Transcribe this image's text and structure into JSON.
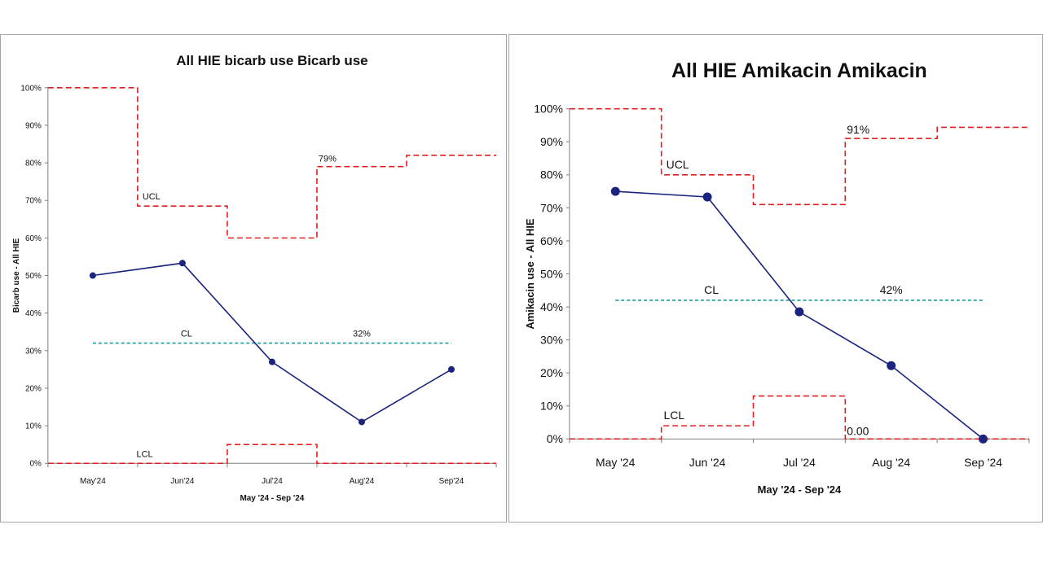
{
  "charts": [
    {
      "type": "line",
      "title": "All HIE bicarb use Bicarb use",
      "xlabel": "May '24 - Sep '24",
      "ylabel": "Bicarb use - All HIE",
      "categories": [
        "May'24",
        "Jun'24",
        "Jul'24",
        "Aug'24",
        "Sep'24"
      ],
      "yticks": [
        "0%",
        "10%",
        "20%",
        "30%",
        "40%",
        "50%",
        "60%",
        "70%",
        "80%",
        "90%",
        "100%"
      ],
      "ylim": [
        0,
        100
      ],
      "grid": false,
      "colors": {
        "series": "#1a237e",
        "limits": "#e02020",
        "center": "#1a9a9a"
      },
      "series": [
        {
          "values": [
            50,
            53.3,
            27,
            11,
            25
          ]
        }
      ],
      "ucl": [
        100,
        68.5,
        60,
        79,
        82
      ],
      "lcl": [
        0,
        0,
        5,
        0,
        0
      ],
      "cl": 32,
      "annotations": {
        "ucl": "UCL",
        "cl": "CL",
        "lcl": "LCL",
        "cl_value": "32%",
        "ucl_value": "79%",
        "lcl_value": ""
      }
    },
    {
      "type": "line",
      "title": "All HIE Amikacin Amikacin",
      "xlabel": "May '24 - Sep '24",
      "ylabel": "Amikacin  use - All HIE",
      "categories": [
        "May '24",
        "Jun '24",
        "Jul '24",
        "Aug '24",
        "Sep '24"
      ],
      "yticks": [
        "0%",
        "10%",
        "20%",
        "30%",
        "40%",
        "50%",
        "60%",
        "70%",
        "80%",
        "90%",
        "100%"
      ],
      "ylim": [
        0,
        100
      ],
      "grid": false,
      "colors": {
        "series": "#1a237e",
        "limits": "#e02020",
        "center": "#1a9a9a"
      },
      "series": [
        {
          "values": [
            75,
            73.3,
            38.5,
            22.2,
            0
          ]
        }
      ],
      "ucl": [
        100,
        80,
        71,
        91,
        94.4
      ],
      "lcl": [
        0,
        4,
        13,
        0,
        0
      ],
      "cl": 42,
      "annotations": {
        "ucl": "UCL",
        "cl": "CL",
        "lcl": "LCL",
        "cl_value": "42%",
        "ucl_value": "91%",
        "lcl_value": "0.00"
      }
    }
  ]
}
